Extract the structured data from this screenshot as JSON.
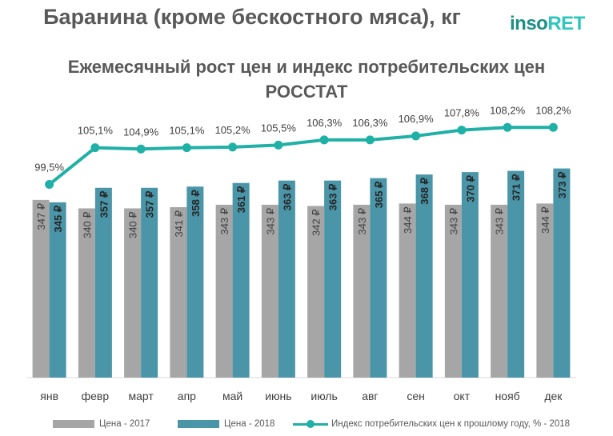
{
  "header": {
    "title": "Баранина (кроме бескостного мяса), кг",
    "logo_part1": "inso",
    "logo_part2": "RET",
    "subtitle_line1": "Ежемесячный рост цен и индекс потребительских цен",
    "subtitle_line2": "РОССТАТ"
  },
  "legend": {
    "series1": "Цена  - 2017",
    "series2": "Цена  - 2018",
    "series3": "Индекс потребительских цен к прошлому году, % - 2018"
  },
  "colors": {
    "bar_2017": "#a6a6a6",
    "bar_2018": "#4a95a8",
    "line": "#1fb0a6",
    "logo_dark": "#1c8f87",
    "logo_light": "#2ec7bd"
  },
  "chart_data": {
    "type": "bar+line",
    "categories": [
      "янв",
      "февр",
      "март",
      "апр",
      "май",
      "июнь",
      "июль",
      "авг",
      "сен",
      "окт",
      "нояб",
      "дек"
    ],
    "series": [
      {
        "name": "Цена  - 2017",
        "type": "bar",
        "values": [
          347,
          340,
          340,
          341,
          343,
          343,
          342,
          343,
          344,
          343,
          343,
          344
        ],
        "labels": [
          "347 ₽",
          "340 ₽",
          "340 ₽",
          "341 ₽",
          "343 ₽",
          "343 ₽",
          "342 ₽",
          "343 ₽",
          "344 ₽",
          "343 ₽",
          "343 ₽",
          "344 ₽"
        ]
      },
      {
        "name": "Цена  - 2018",
        "type": "bar",
        "values": [
          345,
          357,
          357,
          358,
          361,
          363,
          363,
          365,
          368,
          370,
          371,
          373
        ],
        "labels": [
          "345 ₽",
          "357 ₽",
          "357 ₽",
          "358 ₽",
          "361 ₽",
          "363 ₽",
          "363 ₽",
          "365 ₽",
          "368 ₽",
          "370 ₽",
          "371 ₽",
          "373 ₽"
        ]
      },
      {
        "name": "Индекс потребительских цен к прошлому году, % - 2018",
        "type": "line",
        "values": [
          99.5,
          105.1,
          104.9,
          105.1,
          105.2,
          105.5,
          106.3,
          106.3,
          106.9,
          107.8,
          108.2,
          108.2
        ],
        "labels": [
          "99,5%",
          "105,1%",
          "104,9%",
          "105,1%",
          "105,2%",
          "105,5%",
          "106,3%",
          "106,3%",
          "106,9%",
          "107,8%",
          "108,2%",
          "108,2%"
        ]
      }
    ],
    "bar_axis_range": [
      200,
      380
    ],
    "line_axis_range": [
      70,
      113
    ],
    "grid": false,
    "legend_position": "bottom"
  }
}
